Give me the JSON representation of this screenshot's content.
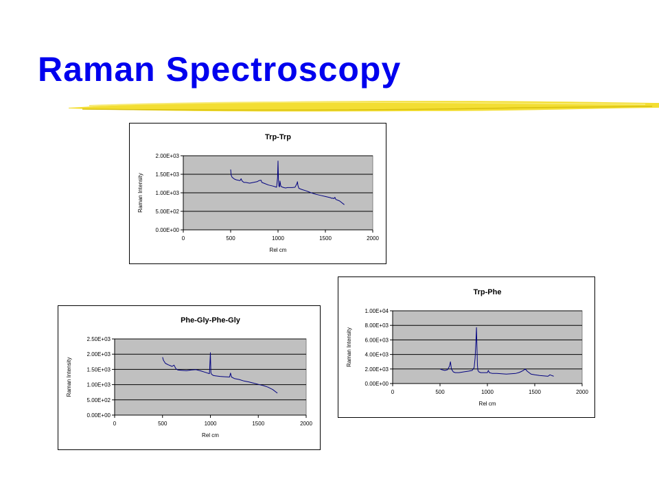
{
  "slide": {
    "title": "Raman Spectroscopy",
    "accent_color": "#0000ee",
    "underline_color": "#f2dc28"
  },
  "chart_data": [
    {
      "type": "line",
      "title": "Trp-Trp",
      "xlabel": "Rel cm",
      "ylabel": "Raman Intensity",
      "xlim": [
        0,
        2000
      ],
      "ylim": [
        0,
        2000
      ],
      "x_ticks": [
        0,
        500,
        1000,
        1500,
        2000
      ],
      "x_tick_labels": [
        "0",
        "500",
        "1000",
        "1500",
        "2000"
      ],
      "y_ticks": [
        0,
        500,
        1000,
        1500,
        2000
      ],
      "y_tick_labels": [
        "0.00E+00",
        "5.00E+02",
        "1.00E+03",
        "1.50E+03",
        "2.00E+03"
      ],
      "grid": true,
      "plot_background": "#c0c0c0",
      "line_color": "#000080",
      "series": [
        {
          "x": [
            500,
            505,
            515,
            540,
            560,
            600,
            610,
            620,
            640,
            660,
            700,
            740,
            780,
            800,
            820,
            830,
            860,
            900,
            950,
            985,
            995,
            1000,
            1005,
            1010,
            1015,
            1020,
            1030,
            1040,
            1060,
            1080,
            1100,
            1150,
            1180,
            1200,
            1205,
            1210,
            1220,
            1250,
            1300,
            1350,
            1400,
            1450,
            1500,
            1550,
            1570,
            1580,
            1590,
            1600,
            1610,
            1650,
            1700
          ],
          "y": [
            1630,
            1480,
            1420,
            1370,
            1350,
            1330,
            1380,
            1320,
            1280,
            1280,
            1260,
            1280,
            1300,
            1330,
            1340,
            1280,
            1250,
            1210,
            1180,
            1150,
            1400,
            1860,
            1300,
            1180,
            1160,
            1320,
            1180,
            1160,
            1140,
            1130,
            1140,
            1140,
            1150,
            1250,
            1300,
            1200,
            1120,
            1090,
            1050,
            1000,
            960,
            930,
            900,
            870,
            850,
            860,
            840,
            880,
            820,
            780,
            680
          ]
        }
      ]
    },
    {
      "type": "line",
      "title": "Phe-Gly-Phe-Gly",
      "xlabel": "Rel cm",
      "ylabel": "Raman Intensity",
      "xlim": [
        0,
        2000
      ],
      "ylim": [
        0,
        2500
      ],
      "x_ticks": [
        0,
        500,
        1000,
        1500,
        2000
      ],
      "x_tick_labels": [
        "0",
        "500",
        "1000",
        "1500",
        "2000"
      ],
      "y_ticks": [
        0,
        500,
        1000,
        1500,
        2000,
        2500
      ],
      "y_tick_labels": [
        "0.00E+00",
        "5.00E+02",
        "1.00E+03",
        "1.50E+03",
        "2.00E+03",
        "2.50E+03"
      ],
      "grid": true,
      "plot_background": "#c0c0c0",
      "line_color": "#000080",
      "series": [
        {
          "x": [
            500,
            510,
            530,
            560,
            600,
            620,
            640,
            660,
            700,
            750,
            800,
            850,
            900,
            950,
            990,
            1000,
            1005,
            1010,
            1030,
            1050,
            1100,
            1150,
            1200,
            1210,
            1220,
            1250,
            1300,
            1350,
            1400,
            1450,
            1500,
            1550,
            1600,
            1650,
            1700
          ],
          "y": [
            1900,
            1800,
            1700,
            1650,
            1600,
            1640,
            1520,
            1480,
            1470,
            1460,
            1480,
            1490,
            1450,
            1400,
            1360,
            2050,
            1400,
            1350,
            1300,
            1290,
            1270,
            1260,
            1250,
            1380,
            1250,
            1200,
            1170,
            1120,
            1090,
            1050,
            1010,
            970,
            920,
            840,
            720
          ]
        }
      ]
    },
    {
      "type": "line",
      "title": "Trp-Phe",
      "xlabel": "Rel cm",
      "ylabel": "Raman Intensity",
      "xlim": [
        0,
        2000
      ],
      "ylim": [
        0,
        10000
      ],
      "x_ticks": [
        0,
        500,
        1000,
        1500,
        2000
      ],
      "x_tick_labels": [
        "0",
        "500",
        "1000",
        "1500",
        "2000"
      ],
      "y_ticks": [
        0,
        2000,
        4000,
        6000,
        8000,
        10000
      ],
      "y_tick_labels": [
        "0.00E+00",
        "2.00E+03",
        "4.00E+03",
        "6.00E+03",
        "8.00E+03",
        "1.00E+04"
      ],
      "grid": true,
      "plot_background": "#c0c0c0",
      "line_color": "#000080",
      "series": [
        {
          "x": [
            500,
            520,
            550,
            580,
            600,
            610,
            620,
            640,
            660,
            700,
            750,
            800,
            840,
            860,
            870,
            880,
            885,
            890,
            895,
            900,
            910,
            930,
            960,
            1000,
            1010,
            1020,
            1050,
            1100,
            1150,
            1200,
            1250,
            1300,
            1330,
            1350,
            1380,
            1400,
            1420,
            1440,
            1460,
            1500,
            1550,
            1600,
            1640,
            1660,
            1680,
            1700
          ],
          "y": [
            2000,
            1900,
            1800,
            1900,
            2400,
            3000,
            2000,
            1600,
            1500,
            1500,
            1600,
            1700,
            1800,
            2200,
            3500,
            6000,
            7700,
            5000,
            2500,
            1800,
            1600,
            1500,
            1500,
            1500,
            1800,
            1500,
            1400,
            1400,
            1350,
            1300,
            1350,
            1400,
            1500,
            1600,
            1800,
            2000,
            1700,
            1500,
            1300,
            1200,
            1100,
            1050,
            1000,
            1200,
            1100,
            1000
          ]
        }
      ]
    }
  ]
}
